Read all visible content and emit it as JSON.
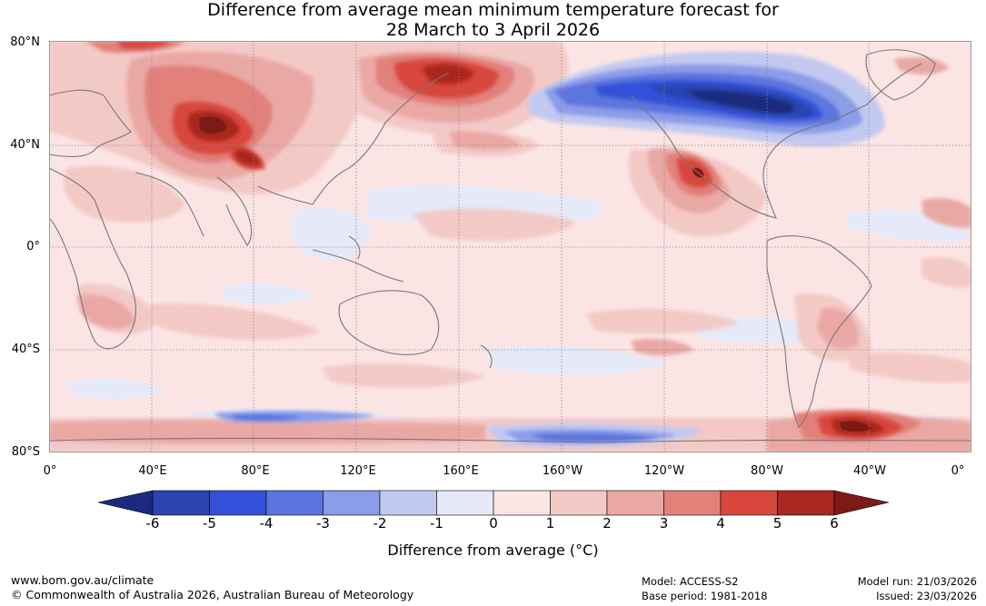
{
  "title": {
    "line1": "Difference from average mean minimum temperature forecast for",
    "line2": "28 March to 3 April 2026"
  },
  "map": {
    "latitude_labels": [
      "80°N",
      "40°N",
      "0°",
      "40°S",
      "80°S"
    ],
    "longitude_labels": [
      "0°",
      "40°E",
      "80°E",
      "120°E",
      "160°E",
      "160°W",
      "120°W",
      "80°W",
      "40°W",
      "0°"
    ],
    "anomaly_regions": [
      {
        "name": "siberia-warm",
        "anomaly": 6
      },
      {
        "name": "central-asia-warm",
        "anomaly": 6
      },
      {
        "name": "east-siberia-warm",
        "anomaly": 5
      },
      {
        "name": "canada-alaska-cold",
        "anomaly": -6
      },
      {
        "name": "mexico-warm",
        "anomaly": 5
      },
      {
        "name": "argentina-warm",
        "anomaly": 3
      },
      {
        "name": "antarctica-peninsula-warm",
        "anomaly": 6
      },
      {
        "name": "southern-ocean-cold",
        "anomaly": -3
      }
    ]
  },
  "colorbar": {
    "ticks": [
      "-6",
      "-5",
      "-4",
      "-3",
      "-2",
      "-1",
      "0",
      "1",
      "2",
      "3",
      "4",
      "5",
      "6"
    ],
    "colors": [
      "#1b2a7e",
      "#2b44b0",
      "#3251d8",
      "#5b74df",
      "#8b9ce8",
      "#c2c9f1",
      "#e6e9f8",
      "#fbe5e4",
      "#f3c9c6",
      "#eaa8a4",
      "#e2807a",
      "#d8473d",
      "#a9281f",
      "#7d1a16"
    ],
    "label": "Difference from average (°C)"
  },
  "footer": {
    "website": "www.bom.gov.au/climate",
    "copyright": "© Commonwealth of Australia 2026, Australian Bureau of Meteorology",
    "model": "Model: ACCESS-S2",
    "base_period": "Base period: 1981-2018",
    "model_run": "Model run: 21/03/2026",
    "issued": "Issued: 23/03/2026"
  }
}
